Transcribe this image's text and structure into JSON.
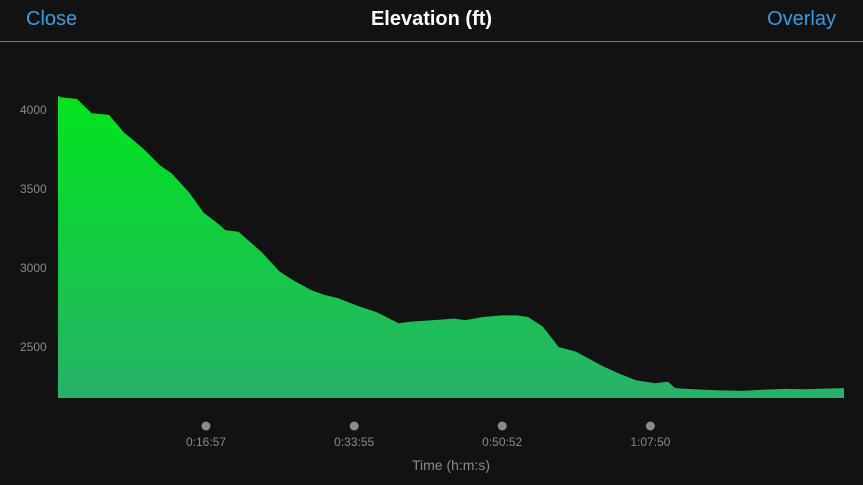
{
  "header": {
    "close_label": "Close",
    "title": "Elevation (ft)",
    "overlay_label": "Overlay"
  },
  "colors": {
    "background": "#121212",
    "accent": "#3a9be0",
    "fill_top": "#00e51c",
    "fill_bottom": "#27b26a",
    "tick_text": "#8a8a8a",
    "marker": "#8a8a8a"
  },
  "chart_data": {
    "type": "area",
    "title": "Elevation (ft)",
    "xlabel": "Time (h:m:s)",
    "ylabel": "",
    "x_unit": "seconds",
    "xlim": [
      0,
      5400
    ],
    "ylim": [
      2180,
      4280
    ],
    "yticks": [
      2500,
      3000,
      3500,
      4000
    ],
    "xticks": [
      {
        "value": 1017,
        "label": "0:16:57"
      },
      {
        "value": 2035,
        "label": "0:33:55"
      },
      {
        "value": 3052,
        "label": "0:50:52"
      },
      {
        "value": 4070,
        "label": "1:07:50"
      }
    ],
    "grid": false,
    "legend": "none",
    "series": [
      {
        "x": [
          0,
          20,
          130,
          230,
          350,
          450,
          580,
          700,
          780,
          900,
          1000,
          1100,
          1150,
          1240,
          1400,
          1520,
          1620,
          1740,
          1830,
          1920,
          2060,
          2190,
          2340,
          2420,
          2580,
          2720,
          2800,
          2920,
          3050,
          3150,
          3230,
          3330,
          3440,
          3560,
          3620,
          3740,
          3860,
          3970,
          4100,
          4190,
          4240,
          4320,
          4440,
          4560,
          4700,
          4840,
          5000,
          5110,
          5400
        ],
        "y": [
          4090,
          4080,
          4070,
          3980,
          3970,
          3860,
          3760,
          3650,
          3600,
          3480,
          3350,
          3280,
          3240,
          3230,
          3100,
          2980,
          2920,
          2860,
          2830,
          2810,
          2760,
          2720,
          2650,
          2660,
          2670,
          2680,
          2670,
          2690,
          2700,
          2700,
          2690,
          2630,
          2500,
          2470,
          2440,
          2380,
          2330,
          2290,
          2270,
          2280,
          2240,
          2235,
          2230,
          2225,
          2222,
          2230,
          2235,
          2232,
          2240
        ]
      }
    ]
  }
}
